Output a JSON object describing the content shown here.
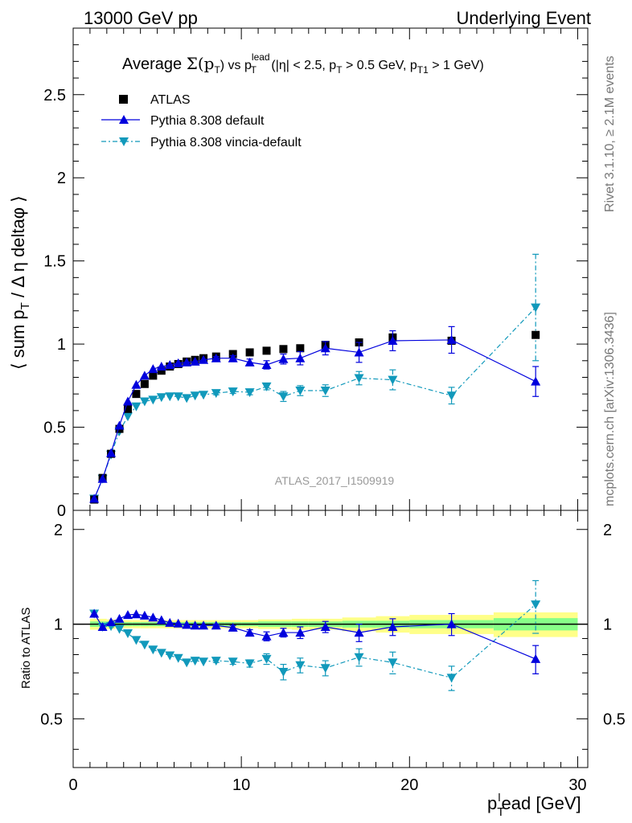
{
  "header": {
    "left": "13000 GeV pp",
    "right": "Underlying Event"
  },
  "side": {
    "rivet": "Rivet 3.1.10, ≥ 2.1M events",
    "mcplots": "mcplots.cern.ch [arXiv:1306.3436]"
  },
  "chart_data": {
    "type": "scatter",
    "title_parts": {
      "a": "Average ",
      "b": "Σ(p",
      "b_sub": "T",
      "c": ") vs p",
      "c_sup": "lead",
      "c_sub": "T",
      "d": " (|η| < 2.5, p",
      "d_sub": "T",
      "e": " > 0.5 GeV, p",
      "e_sub": "T1",
      "f": " > 1 GeV)"
    },
    "ylabel_main": "⟨ sum p",
    "ylabel_main_sub": "T",
    "ylabel_main_rest": " / Δ η deltaφ ⟩",
    "ylabel_ratio": "Ratio to ATLAS",
    "xlabel": "p",
    "xlabel_sub": "T",
    "xlabel_sup": "l",
    "xlabel_rest": "ead [GeV]",
    "watermark": "ATLAS_2017_I1509919",
    "xlim": [
      0,
      30.6
    ],
    "ylim_main": [
      0,
      2.9
    ],
    "ylim_ratio": [
      0.35,
      2.3
    ],
    "x_ticks": [
      0,
      10,
      20,
      30
    ],
    "y_ticks_main": [
      "0.5",
      "1",
      "1.5",
      "2",
      "2.5"
    ],
    "y_tick_zero": "0",
    "y_ticks_ratio": [
      "0.5",
      "1",
      "2"
    ],
    "legend": [
      "ATLAS",
      "Pythia 8.308 default",
      "Pythia 8.308 vincia-default"
    ],
    "colors": {
      "atlas": "#000000",
      "default": "#0000dd",
      "vincia": "#1199bb",
      "band_inner": "#88ff88",
      "band_outer": "#ffff88"
    },
    "atlas": {
      "x": [
        1.25,
        1.75,
        2.25,
        2.75,
        3.25,
        3.75,
        4.25,
        4.75,
        5.25,
        5.75,
        6.25,
        6.75,
        7.25,
        7.75,
        8.5,
        9.5,
        10.5,
        11.5,
        12.5,
        13.5,
        15.0,
        17.0,
        19.0,
        22.5,
        27.5
      ],
      "y": [
        0.065,
        0.195,
        0.34,
        0.49,
        0.61,
        0.7,
        0.76,
        0.81,
        0.84,
        0.865,
        0.88,
        0.895,
        0.905,
        0.915,
        0.925,
        0.94,
        0.95,
        0.96,
        0.97,
        0.975,
        0.995,
        1.01,
        1.04,
        1.02,
        1.055
      ]
    },
    "pythia_default": {
      "x": [
        1.25,
        1.75,
        2.25,
        2.75,
        3.25,
        3.75,
        4.25,
        4.75,
        5.25,
        5.75,
        6.25,
        6.75,
        7.25,
        7.75,
        8.5,
        9.5,
        10.5,
        11.5,
        12.5,
        13.5,
        15.0,
        17.0,
        19.0,
        22.5,
        27.5
      ],
      "y": [
        0.07,
        0.19,
        0.345,
        0.51,
        0.655,
        0.755,
        0.81,
        0.85,
        0.865,
        0.875,
        0.885,
        0.89,
        0.895,
        0.905,
        0.915,
        0.915,
        0.89,
        0.875,
        0.91,
        0.915,
        0.975,
        0.95,
        1.02,
        1.025,
        0.775
      ],
      "err": [
        0.0,
        0.0,
        0.0,
        0.0,
        0.0,
        0.0,
        0.0,
        0.0,
        0.0,
        0.0,
        0.0,
        0.0,
        0.0,
        0.0,
        0.01,
        0.015,
        0.02,
        0.025,
        0.03,
        0.04,
        0.04,
        0.06,
        0.06,
        0.08,
        0.09
      ]
    },
    "pythia_vincia": {
      "x": [
        1.25,
        1.75,
        2.25,
        2.75,
        3.25,
        3.75,
        4.25,
        4.75,
        5.25,
        5.75,
        6.25,
        6.75,
        7.25,
        7.75,
        8.5,
        9.5,
        10.5,
        11.5,
        12.5,
        13.5,
        15.0,
        17.0,
        19.0,
        22.5,
        27.5
      ],
      "y": [
        0.07,
        0.19,
        0.335,
        0.475,
        0.565,
        0.625,
        0.655,
        0.665,
        0.68,
        0.685,
        0.685,
        0.675,
        0.69,
        0.695,
        0.705,
        0.715,
        0.71,
        0.745,
        0.685,
        0.72,
        0.72,
        0.795,
        0.785,
        0.69,
        1.22
      ]
    },
    "ratio_default": {
      "y": [
        1.08,
        0.98,
        1.015,
        1.04,
        1.07,
        1.075,
        1.065,
        1.05,
        1.03,
        1.01,
        1.005,
        0.995,
        0.99,
        0.99,
        0.99,
        0.975,
        0.94,
        0.915,
        0.94,
        0.94,
        0.98,
        0.94,
        0.98,
        1.0,
        0.775
      ],
      "err": [
        0.0,
        0.0,
        0.0,
        0.0,
        0.0,
        0.0,
        0.0,
        0.0,
        0.0,
        0.0,
        0.0,
        0.0,
        0.0,
        0.0,
        0.01,
        0.015,
        0.02,
        0.03,
        0.03,
        0.04,
        0.04,
        0.06,
        0.06,
        0.08,
        0.08
      ]
    },
    "ratio_vincia": {
      "y": [
        1.08,
        0.98,
        0.985,
        0.965,
        0.935,
        0.89,
        0.86,
        0.83,
        0.81,
        0.795,
        0.78,
        0.755,
        0.765,
        0.76,
        0.765,
        0.76,
        0.75,
        0.775,
        0.705,
        0.74,
        0.725,
        0.785,
        0.755,
        0.675,
        1.155
      ],
      "err": [
        0.0,
        0.0,
        0.0,
        0.0,
        0.0,
        0.0,
        0.0,
        0.0,
        0.0,
        0.0,
        0.0,
        0.0,
        0.0,
        0.0,
        0.01,
        0.015,
        0.02,
        0.03,
        0.04,
        0.04,
        0.04,
        0.05,
        0.06,
        0.06,
        0.22
      ]
    },
    "ratio_band": {
      "x_edges": [
        1.0,
        1.5,
        2.0,
        2.5,
        3.0,
        3.5,
        4.0,
        4.5,
        5.0,
        5.5,
        6.0,
        6.5,
        7.0,
        7.5,
        8.0,
        9.0,
        10.0,
        11.0,
        12.0,
        13.0,
        14.0,
        16.0,
        18.0,
        20.0,
        25.0,
        30.0
      ],
      "inner": [
        0.02,
        0.02,
        0.02,
        0.015,
        0.015,
        0.015,
        0.015,
        0.015,
        0.015,
        0.015,
        0.015,
        0.015,
        0.015,
        0.015,
        0.015,
        0.015,
        0.015,
        0.02,
        0.02,
        0.02,
        0.02,
        0.025,
        0.025,
        0.03,
        0.045
      ],
      "outer": [
        0.04,
        0.04,
        0.035,
        0.03,
        0.03,
        0.03,
        0.03,
        0.03,
        0.03,
        0.03,
        0.03,
        0.03,
        0.03,
        0.03,
        0.03,
        0.03,
        0.03,
        0.035,
        0.035,
        0.04,
        0.04,
        0.05,
        0.06,
        0.07,
        0.09
      ]
    }
  }
}
